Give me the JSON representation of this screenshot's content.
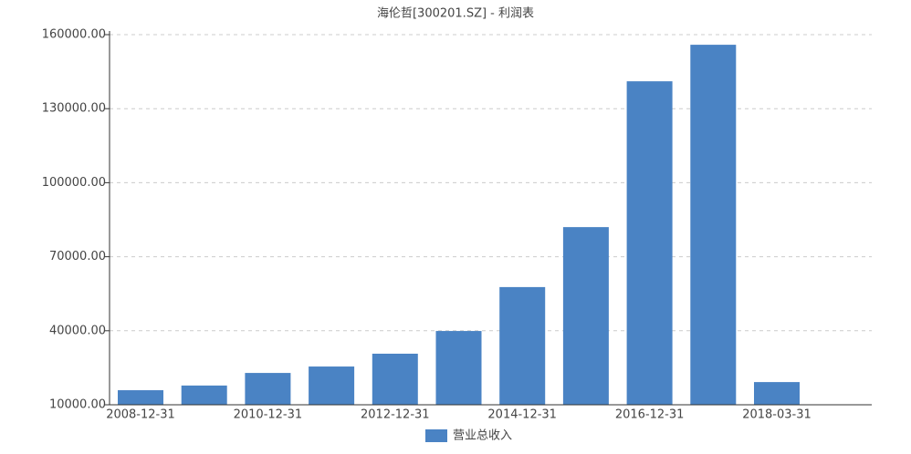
{
  "chart_data": {
    "type": "bar",
    "title": "海伦哲[300201.SZ] - 利润表",
    "categories": [
      "2008-12-31",
      null,
      "2010-12-31",
      null,
      "2012-12-31",
      null,
      "2014-12-31",
      null,
      "2016-12-31",
      null,
      "2018-03-31"
    ],
    "series": [
      {
        "name": "营业总收入",
        "color": "#4a83c4",
        "values": [
          15900,
          17800,
          22900,
          25500,
          30700,
          39900,
          57700,
          82000,
          141100,
          155900,
          19200
        ]
      }
    ],
    "ylim": [
      10000,
      160000
    ],
    "yticks": [
      {
        "value": 10000,
        "label": "10000.00"
      },
      {
        "value": 40000,
        "label": "40000.00"
      },
      {
        "value": 70000,
        "label": "70000.00"
      },
      {
        "value": 100000,
        "label": "100000.00"
      },
      {
        "value": 130000,
        "label": "130000.00"
      },
      {
        "value": 160000,
        "label": "160000.00"
      }
    ],
    "grid": true
  }
}
